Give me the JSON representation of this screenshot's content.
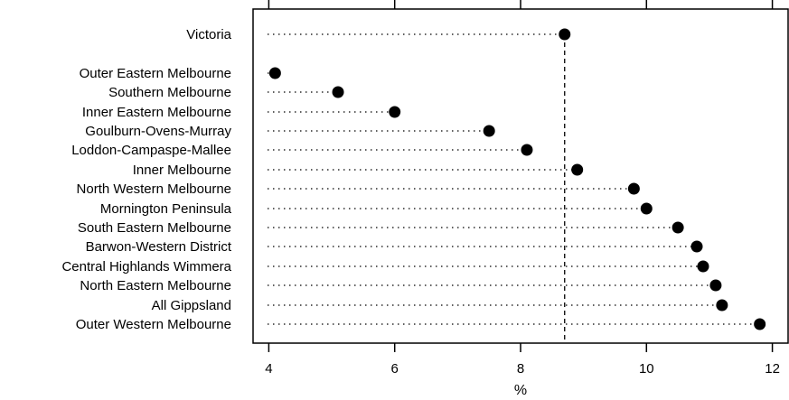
{
  "chart_data": {
    "type": "scatter",
    "subtype": "dot-plot",
    "title": "",
    "xlabel": "%",
    "ylabel": "",
    "xlim": [
      3.75,
      12.25
    ],
    "xticks": [
      4,
      6,
      8,
      10,
      12
    ],
    "grid": false,
    "reference_line": {
      "x": 8.7,
      "style": "dashed",
      "label": ""
    },
    "categories": [
      "Victoria",
      "Outer Eastern Melbourne",
      "Southern Melbourne",
      "Inner Eastern Melbourne",
      "Goulburn-Ovens-Murray",
      "Loddon-Campaspe-Mallee",
      "Inner Melbourne",
      "North Western Melbourne",
      "Mornington Peninsula",
      "South Eastern Melbourne",
      "Barwon-Western District",
      "Central Highlands Wimmera",
      "North Eastern Melbourne",
      "All Gippsland",
      "Outer Western Melbourne"
    ],
    "values": [
      8.7,
      4.1,
      5.1,
      6.0,
      7.5,
      8.1,
      8.9,
      9.8,
      10.0,
      10.5,
      10.8,
      10.9,
      11.1,
      11.2,
      11.8
    ],
    "colors": {
      "marker": "#000000",
      "leader": "#000000",
      "axis": "#000000"
    }
  }
}
